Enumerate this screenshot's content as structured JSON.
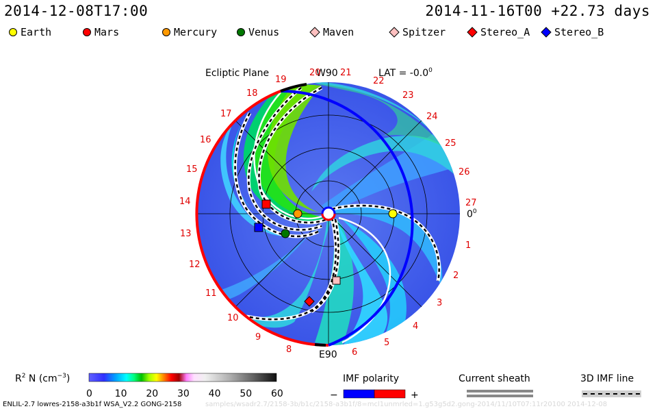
{
  "header": {
    "left_time": "2014-12-08T17:00",
    "right_time": "2014-11-16T00 +22.73 days"
  },
  "legend": [
    {
      "label": "Earth",
      "color": "#ffff00",
      "shape": "circle"
    },
    {
      "label": "Mars",
      "color": "#ff0000",
      "shape": "circle"
    },
    {
      "label": "Mercury",
      "color": "#ff9900",
      "shape": "circle"
    },
    {
      "label": "Venus",
      "color": "#007700",
      "shape": "circle"
    },
    {
      "label": "Maven",
      "color": "#ffc0c0",
      "shape": "diamond"
    },
    {
      "label": "Spitzer",
      "color": "#ffc0c0",
      "shape": "diamond"
    },
    {
      "label": "Stereo_A",
      "color": "#ff0000",
      "shape": "diamond"
    },
    {
      "label": "Stereo_B",
      "color": "#0000ff",
      "shape": "diamond"
    }
  ],
  "plot": {
    "title": "Ecliptic Plane",
    "top_label": "W90",
    "bottom_label": "E90",
    "lat_label": "LAT = -0.0",
    "lat_sup": "0",
    "zero_label": "0",
    "zero_sup": "0",
    "carrington_ticks": [
      "19",
      "20",
      "21",
      "22",
      "23",
      "24",
      "25",
      "26",
      "27",
      "1",
      "2",
      "3",
      "4",
      "5",
      "6",
      "8",
      "9",
      "10",
      "11",
      "12",
      "13",
      "14",
      "15",
      "16",
      "17",
      "18"
    ]
  },
  "colorbar": {
    "label": "R",
    "label_sup": "2",
    "label_rest": " N (cm",
    "label_exp": "−3",
    "label_end": ")",
    "ticks": [
      "0",
      "10",
      "20",
      "30",
      "40",
      "50",
      "60"
    ]
  },
  "imf": {
    "title": "IMF polarity",
    "minus": "−",
    "plus": "+",
    "negative_color": "#0000ff",
    "positive_color": "#ff0000"
  },
  "current_sheath": {
    "title": "Current sheath"
  },
  "imf_line": {
    "title": "3D IMF line"
  },
  "footer": {
    "model": "ENLIL-2.7 lowres-2158-a3b1f WSA_V2.2 GONG-2158",
    "ghost": "samples/wsadr2.7/2158-3b/b1c/2158-a3b1f/8=mcl1unmrled=1.g53g5d2.gong-2014/11/10T07:11r20100     2014-12-08"
  }
}
